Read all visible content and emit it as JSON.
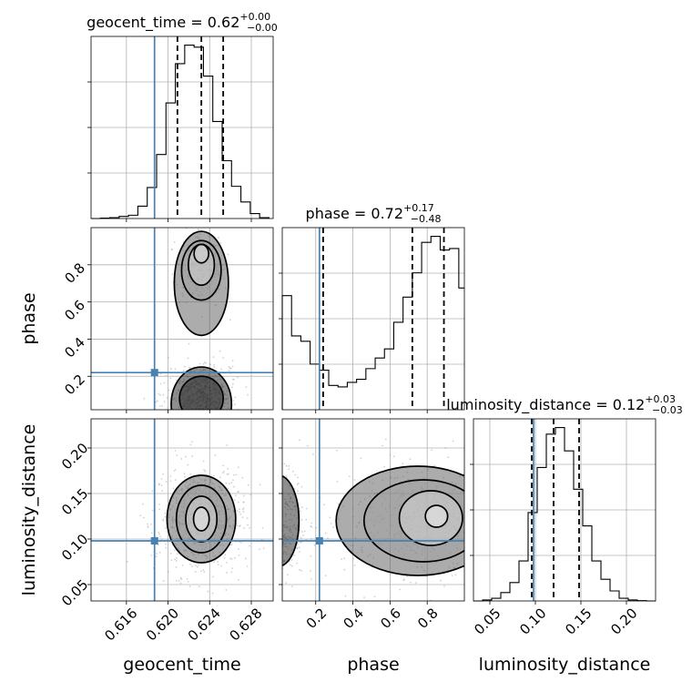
{
  "chart_data": {
    "type": "corner",
    "parameters": [
      "geocent_time",
      "phase",
      "luminosity_distance"
    ],
    "axis_labels": [
      "geocent_time",
      "phase",
      "luminosity_distance"
    ],
    "titles": [
      {
        "name": "geocent_time",
        "value": "0.62",
        "plus": "+0.00",
        "minus": "−0.00"
      },
      {
        "name": "phase",
        "value": "0.72",
        "plus": "+0.17",
        "minus": "−0.48"
      },
      {
        "name": "luminosity_distance",
        "value": "0.12",
        "plus": "+0.03",
        "minus": "−0.03"
      }
    ],
    "ranges": [
      [
        0.6126,
        0.6301
      ],
      [
        0.02,
        1.0
      ],
      [
        0.032,
        0.232
      ]
    ],
    "ticks": [
      {
        "values": [
          0.616,
          0.62,
          0.624,
          0.628
        ],
        "labels": [
          "0.616",
          "0.620",
          "0.624",
          "0.628"
        ]
      },
      {
        "values": [
          0.2,
          0.4,
          0.6,
          0.8
        ],
        "labels": [
          "0.2",
          "0.4",
          "0.6",
          "0.8"
        ]
      },
      {
        "values": [
          0.05,
          0.1,
          0.15,
          0.2
        ],
        "labels": [
          "0.05",
          "0.10",
          "0.15",
          "0.20"
        ]
      }
    ],
    "truths": [
      0.6187,
      0.22,
      0.098
    ],
    "quantiles": [
      [
        0.6209,
        0.6232,
        0.6253
      ],
      [
        0.24,
        0.72,
        0.89
      ],
      [
        0.096,
        0.12,
        0.148
      ]
    ],
    "histograms": [
      {
        "edges": [
          0.6126,
          0.6135,
          0.6144,
          0.6153,
          0.6162,
          0.6171,
          0.618,
          0.6189,
          0.6198,
          0.6207,
          0.6216,
          0.6225,
          0.6234,
          0.6243,
          0.6252,
          0.6261,
          0.627,
          0.6279,
          0.6288,
          0.6297
        ],
        "counts": [
          0,
          1,
          2,
          5,
          8,
          30,
          75,
          155,
          280,
          375,
          420,
          415,
          345,
          235,
          140,
          78,
          40,
          12,
          2
        ]
      },
      {
        "edges": [
          0.02,
          0.07,
          0.12,
          0.17,
          0.22,
          0.27,
          0.32,
          0.37,
          0.42,
          0.47,
          0.52,
          0.57,
          0.62,
          0.67,
          0.72,
          0.77,
          0.82,
          0.87,
          0.92,
          0.97,
          1.02
        ],
        "counts": [
          150,
          97,
          90,
          60,
          52,
          32,
          30,
          36,
          40,
          54,
          68,
          80,
          115,
          148,
          180,
          220,
          228,
          210,
          212,
          160
        ]
      },
      {
        "edges": [
          0.032,
          0.042,
          0.052,
          0.062,
          0.072,
          0.082,
          0.092,
          0.102,
          0.112,
          0.122,
          0.132,
          0.142,
          0.152,
          0.162,
          0.172,
          0.182,
          0.192,
          0.202,
          0.212,
          0.222,
          0.232
        ],
        "counts": [
          0,
          3,
          8,
          25,
          55,
          120,
          265,
          400,
          500,
          520,
          450,
          335,
          225,
          120,
          65,
          30,
          8,
          3,
          1,
          0
        ]
      }
    ],
    "contours": {
      "1_0": [
        {
          "cx": 0.6232,
          "cy": 0.86,
          "rx": 0.0007,
          "ry": 0.05
        },
        {
          "cx": 0.6232,
          "cy": 0.8,
          "rx": 0.00125,
          "ry": 0.11
        },
        {
          "cx": 0.6232,
          "cy": 0.77,
          "rx": 0.0019,
          "ry": 0.16
        },
        {
          "cx": 0.6232,
          "cy": 0.7,
          "rx": 0.0026,
          "ry": 0.28
        },
        {
          "cx": 0.6232,
          "cy": 0.08,
          "rx": 0.0021,
          "ry": 0.12
        },
        {
          "cx": 0.6232,
          "cy": 0.05,
          "rx": 0.0029,
          "ry": 0.2
        }
      ],
      "2_0": [
        {
          "cx": 0.6232,
          "cy": 0.122,
          "rx": 0.00075,
          "ry": 0.013
        },
        {
          "cx": 0.6232,
          "cy": 0.122,
          "rx": 0.0015,
          "ry": 0.025
        },
        {
          "cx": 0.6232,
          "cy": 0.122,
          "rx": 0.0024,
          "ry": 0.037
        },
        {
          "cx": 0.6232,
          "cy": 0.122,
          "rx": 0.0033,
          "ry": 0.048
        }
      ],
      "2_1": [
        {
          "cx": 0.85,
          "cy": 0.125,
          "rx": 0.06,
          "ry": 0.012
        },
        {
          "cx": 0.82,
          "cy": 0.123,
          "rx": 0.17,
          "ry": 0.03
        },
        {
          "cx": 0.78,
          "cy": 0.12,
          "rx": 0.32,
          "ry": 0.045
        },
        {
          "cx": 0.75,
          "cy": 0.12,
          "rx": 0.44,
          "ry": 0.06
        },
        {
          "cx": 0.0,
          "cy": 0.12,
          "rx": 0.11,
          "ry": 0.05
        }
      ]
    }
  }
}
